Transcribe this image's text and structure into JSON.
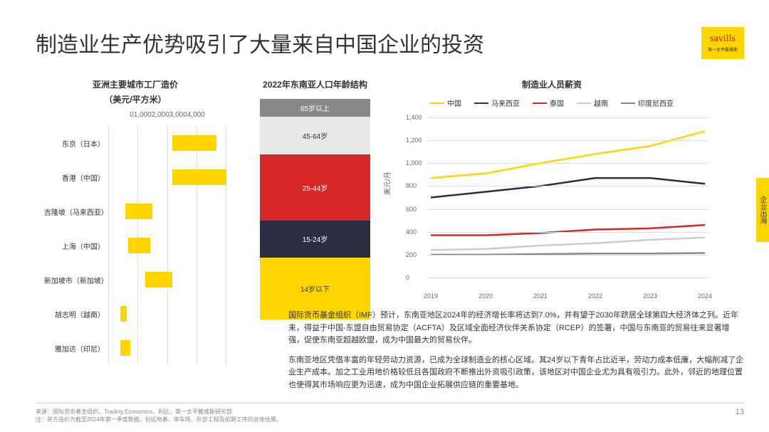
{
  "title": "制造业生产优势吸引了大量来自中国企业的投资",
  "logo": {
    "text": "savills",
    "sub": "第一太平戴维斯"
  },
  "side_tab": "企业出海",
  "page_number": "13",
  "bar_chart": {
    "title": "亚洲主要城市工厂造价",
    "subtitle": "（美元/平方米）",
    "xmax": 4000,
    "xticks": [
      "0",
      "1,000",
      "2,000",
      "3,000",
      "4,000"
    ],
    "bars": [
      {
        "label": "东京（日本）",
        "start": 1900,
        "end": 3200,
        "color": "#ffd500"
      },
      {
        "label": "香港（中国）",
        "start": 1900,
        "end": 3500,
        "color": "#ffd500"
      },
      {
        "label": "吉隆坡（马来西亚）",
        "start": 500,
        "end": 1300,
        "color": "#ffd500"
      },
      {
        "label": "上海（中国）",
        "start": 600,
        "end": 1250,
        "color": "#ffd500"
      },
      {
        "label": "新加坡市（新加坡）",
        "start": 1100,
        "end": 1900,
        "color": "#ffd500"
      },
      {
        "label": "胡志明（越南）",
        "start": 350,
        "end": 550,
        "color": "#ffd500"
      },
      {
        "label": "雅加达（印尼）",
        "start": 350,
        "end": 650,
        "color": "#ffd500"
      }
    ]
  },
  "stack_chart": {
    "title": "2022年东南亚人口年龄结构",
    "segments": [
      {
        "label": "14岁以下",
        "pct": 28,
        "color": "#ffd500",
        "text_color": "#333"
      },
      {
        "label": "15-24岁",
        "pct": 17,
        "color": "#2b2d42",
        "text_color": "#fff"
      },
      {
        "label": "25-44岁",
        "pct": 30,
        "color": "#d62828",
        "text_color": "#fff"
      },
      {
        "label": "45-64岁",
        "pct": 17,
        "color": "#e8e8e8",
        "text_color": "#333"
      },
      {
        "label": "65岁以上",
        "pct": 8,
        "color": "#888",
        "text_color": "#fff"
      }
    ]
  },
  "line_chart": {
    "title": "制造业人员薪资",
    "ylabel": "美元/月",
    "ymin": 0,
    "ymax": 1400,
    "yticks": [
      0,
      200,
      400,
      600,
      800,
      1000,
      1200,
      1400
    ],
    "xlabels": [
      "2019",
      "2020",
      "2021",
      "2022",
      "2023",
      "2024"
    ],
    "series": [
      {
        "name": "中国",
        "color": "#ffd500",
        "values": [
          870,
          910,
          1000,
          1080,
          1150,
          1280
        ]
      },
      {
        "name": "马来西亚",
        "color": "#2b2d42",
        "values": [
          700,
          750,
          800,
          870,
          870,
          820
        ]
      },
      {
        "name": "泰国",
        "color": "#d62828",
        "values": [
          370,
          370,
          390,
          420,
          430,
          460
        ]
      },
      {
        "name": "越南",
        "color": "#ccc",
        "values": [
          240,
          250,
          280,
          300,
          330,
          350
        ]
      },
      {
        "name": "印度尼西亚",
        "color": "#888",
        "values": [
          200,
          200,
          205,
          210,
          210,
          215
        ]
      }
    ]
  },
  "body": {
    "p1": "国际货币基金组织（IMF）预计，东南亚地区2024年的经济增长率将达到7.0%，并有望于2030年跻居全球第四大经济体之列。近年来，得益于中国-东盟自由贸易协定（ACFTA）及区域全面经济伙伴关系协定（RCEP）的签署，中国与东南亚的贸易往来显著增强，促使东南亚超越欧盟，成为中国最大的贸易伙伴。",
    "p2": "东南亚地区凭借丰富的年轻劳动力资源，已成为全球制造业的核心区域。其24岁以下青年占比近半，劳动力成本低廉，大幅削减了企业生产成本。加之工业用地价格较低且各国政府不断推出外资吸引政策，该地区对中国企业尤为具有吸引力。此外，邻近的地理位置也使得其市场响应更为迅速，成为中国企业拓展供应链的重要基地。"
  },
  "footer": {
    "source": "来源：国际货币基金组织，Trading Economics，利比，第一太平戴维斯研究部",
    "note": "注：单方造价为截至2024年第一季度数据，包括地基、停车场、外部工程及前期工序的总体估算。"
  }
}
